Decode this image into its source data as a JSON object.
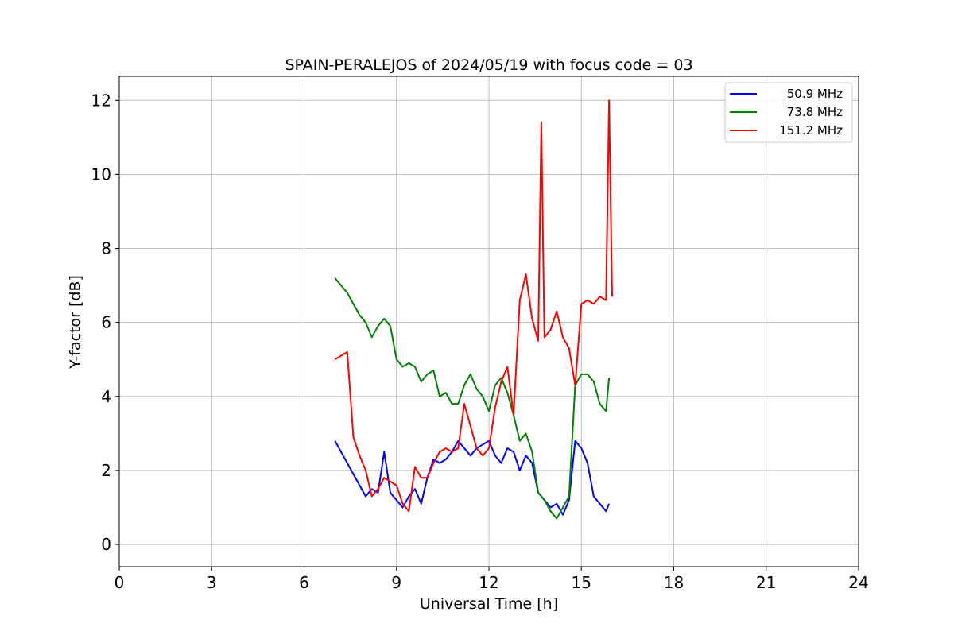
{
  "chart_data": {
    "type": "line",
    "title": "SPAIN-PERALEJOS of 2024/05/19 with focus code = 03",
    "xlabel": "Universal Time [h]",
    "ylabel": "Y-factor [dB]",
    "xlim": [
      0,
      24
    ],
    "ylim": [
      -0.6,
      12.65
    ],
    "xticks": [
      0,
      3,
      6,
      9,
      12,
      15,
      18,
      21,
      24
    ],
    "xtick_labels": [
      "0",
      "3",
      "6",
      "9",
      "12",
      "15",
      "18",
      "21",
      "24"
    ],
    "yticks": [
      0,
      2,
      4,
      6,
      8,
      10,
      12
    ],
    "ytick_labels": [
      "0",
      "2",
      "4",
      "6",
      "8",
      "10",
      "12"
    ],
    "grid": true,
    "legend_position": "top-right",
    "series": [
      {
        "name": "50.9 MHz",
        "color": "#0000ff",
        "x": [
          7.0,
          7.2,
          7.4,
          7.6,
          7.8,
          8.0,
          8.2,
          8.4,
          8.6,
          8.8,
          9.0,
          9.2,
          9.4,
          9.6,
          9.8,
          10.0,
          10.2,
          10.4,
          10.6,
          10.8,
          11.0,
          11.2,
          11.4,
          11.6,
          11.8,
          12.0,
          12.2,
          12.4,
          12.6,
          12.8,
          13.0,
          13.2,
          13.4,
          13.6,
          13.8,
          14.0,
          14.2,
          14.4,
          14.6,
          14.8,
          15.0,
          15.2,
          15.4,
          15.6,
          15.8,
          15.9
        ],
        "y": [
          2.8,
          2.5,
          2.2,
          1.9,
          1.6,
          1.3,
          1.5,
          1.4,
          2.5,
          1.4,
          1.2,
          1.0,
          1.3,
          1.5,
          1.1,
          1.8,
          2.3,
          2.2,
          2.3,
          2.5,
          2.8,
          2.6,
          2.4,
          2.6,
          2.7,
          2.8,
          2.4,
          2.2,
          2.6,
          2.5,
          2.0,
          2.4,
          2.2,
          1.4,
          1.2,
          1.0,
          1.1,
          0.8,
          1.2,
          2.8,
          2.6,
          2.2,
          1.3,
          1.1,
          0.9,
          1.1
        ]
      },
      {
        "name": "73.8 MHz",
        "color": "#008000",
        "x": [
          7.0,
          7.2,
          7.4,
          7.6,
          7.8,
          8.0,
          8.2,
          8.4,
          8.6,
          8.8,
          9.0,
          9.2,
          9.4,
          9.6,
          9.8,
          10.0,
          10.2,
          10.4,
          10.6,
          10.8,
          11.0,
          11.2,
          11.4,
          11.6,
          11.8,
          12.0,
          12.2,
          12.4,
          12.6,
          12.8,
          13.0,
          13.2,
          13.4,
          13.6,
          13.8,
          14.0,
          14.2,
          14.4,
          14.6,
          14.8,
          15.0,
          15.2,
          15.4,
          15.6,
          15.8,
          15.9
        ],
        "y": [
          7.2,
          7.0,
          6.8,
          6.5,
          6.2,
          6.0,
          5.6,
          5.9,
          6.1,
          5.9,
          5.0,
          4.8,
          4.9,
          4.8,
          4.4,
          4.6,
          4.7,
          4.0,
          4.1,
          3.8,
          3.8,
          4.3,
          4.6,
          4.2,
          4.0,
          3.6,
          4.3,
          4.5,
          4.1,
          3.5,
          2.8,
          3.0,
          2.5,
          1.4,
          1.2,
          0.9,
          0.7,
          1.0,
          1.3,
          4.3,
          4.6,
          4.6,
          4.4,
          3.8,
          3.6,
          4.5
        ]
      },
      {
        "name": "151.2 MHz",
        "color": "#ff0000",
        "x": [
          7.0,
          7.2,
          7.4,
          7.6,
          7.8,
          8.0,
          8.2,
          8.4,
          8.6,
          8.8,
          9.0,
          9.2,
          9.4,
          9.6,
          9.8,
          10.0,
          10.2,
          10.4,
          10.6,
          10.8,
          11.0,
          11.2,
          11.4,
          11.6,
          11.8,
          12.0,
          12.2,
          12.4,
          12.6,
          12.8,
          13.0,
          13.2,
          13.4,
          13.6,
          13.7,
          13.8,
          14.0,
          14.2,
          14.4,
          14.6,
          14.8,
          15.0,
          15.2,
          15.4,
          15.6,
          15.8,
          15.9,
          16.0
        ],
        "y": [
          5.0,
          5.1,
          5.2,
          2.9,
          2.4,
          2.0,
          1.3,
          1.5,
          1.8,
          1.7,
          1.6,
          1.1,
          0.9,
          2.1,
          1.8,
          1.8,
          2.2,
          2.5,
          2.6,
          2.5,
          2.6,
          3.8,
          3.2,
          2.6,
          2.4,
          2.6,
          3.7,
          4.4,
          4.8,
          3.5,
          6.6,
          7.3,
          6.1,
          5.5,
          11.4,
          5.6,
          5.8,
          6.3,
          5.6,
          5.3,
          4.3,
          6.5,
          6.6,
          6.5,
          6.7,
          6.6,
          12.0,
          6.7
        ]
      }
    ]
  }
}
